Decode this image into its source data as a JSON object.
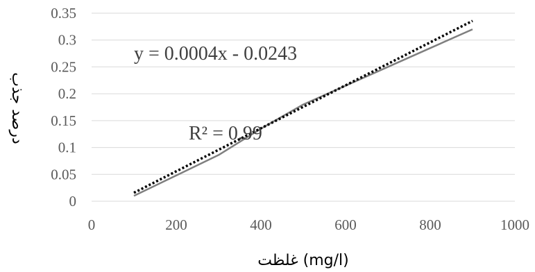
{
  "chart_data": {
    "type": "line",
    "title": "",
    "xlabel": "غلظت (mg/l)",
    "ylabel": "درصد جذب",
    "xlim": [
      0,
      1000
    ],
    "ylim": [
      0,
      0.35
    ],
    "x_ticks": [
      "0",
      "200",
      "400",
      "600",
      "800",
      "1000"
    ],
    "y_ticks": [
      "0",
      "0.05",
      "0.1",
      "0.15",
      "0.2",
      "0.25",
      "0.3",
      "0.35"
    ],
    "grid": true,
    "legend": "none",
    "series": [
      {
        "x": [
          100,
          200,
          300,
          400,
          500,
          600,
          700,
          800,
          900
        ],
        "y": [
          0.01,
          0.048,
          0.086,
          0.135,
          0.18,
          0.215,
          0.25,
          0.285,
          0.32
        ],
        "style": "solid",
        "color": "#7f7f7f"
      }
    ],
    "trendline": {
      "type": "linear",
      "style": "dotted",
      "color": "#000000",
      "slope": 0.0004,
      "intercept": -0.0243,
      "x_range": [
        100,
        900
      ],
      "equation_label": "y = 0.0004x - 0.0243",
      "r2_label": "R² = 0.99"
    }
  }
}
